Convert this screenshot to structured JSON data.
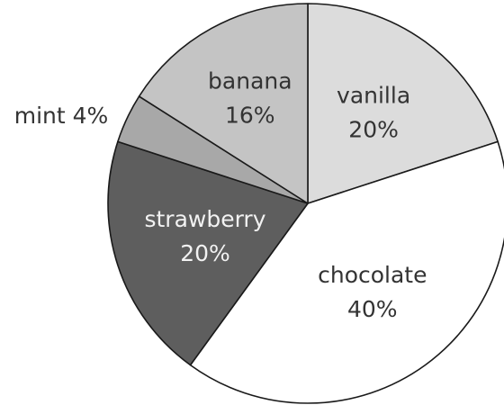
{
  "chart_data": {
    "type": "pie",
    "title": "",
    "start_angle_deg": 0,
    "direction": "clockwise",
    "slices": [
      {
        "label": "vanilla",
        "value": 20,
        "value_label": "20%",
        "color": "#dcdcdc",
        "text_color": "#333333"
      },
      {
        "label": "chocolate",
        "value": 40,
        "value_label": "40%",
        "color": "#ffffff",
        "text_color": "#333333"
      },
      {
        "label": "strawberry",
        "value": 20,
        "value_label": "20%",
        "color": "#5e5e5e",
        "text_color": "#f2f2f2"
      },
      {
        "label": "mint",
        "value": 4,
        "value_label": "4%",
        "color": "#a8a8a8",
        "text_color": "#333333",
        "label_position": "outside"
      },
      {
        "label": "banana",
        "value": 16,
        "value_label": "16%",
        "color": "#c4c4c4",
        "text_color": "#333333"
      }
    ]
  }
}
